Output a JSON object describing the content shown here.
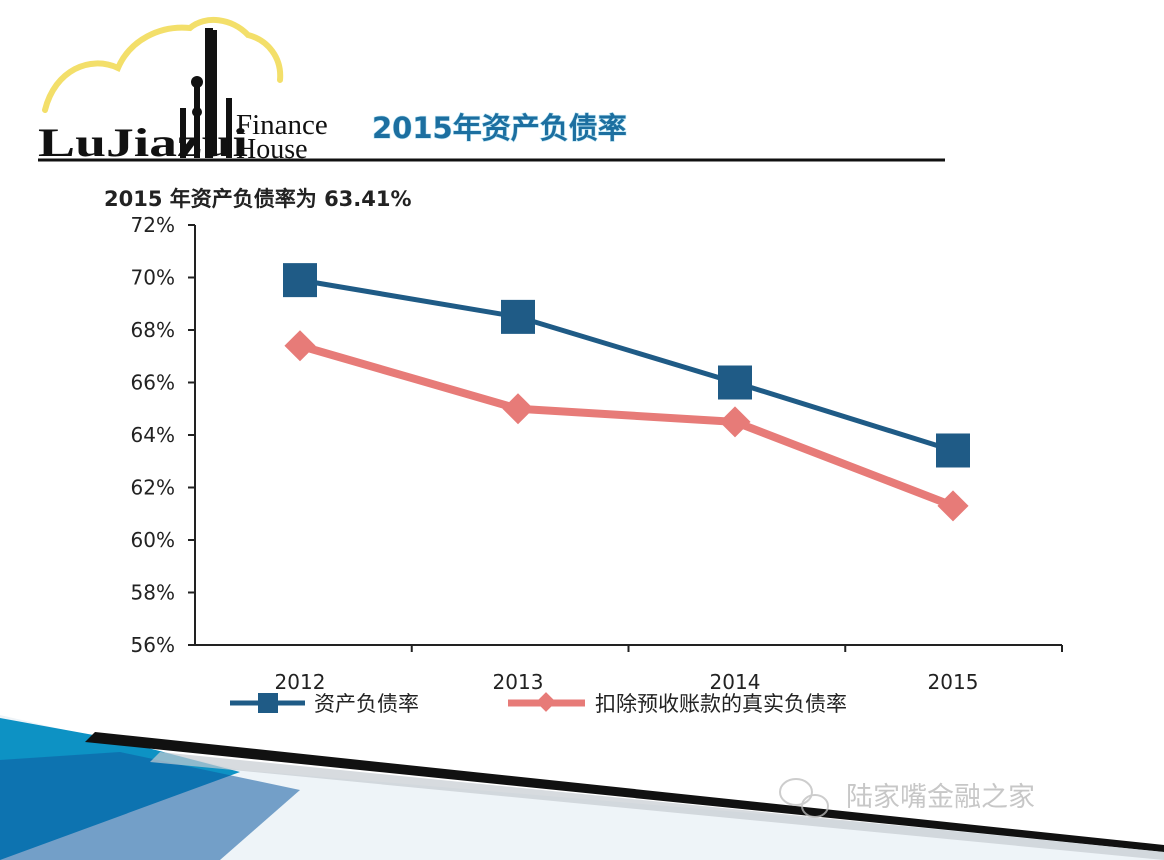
{
  "header": {
    "logo_word": "LuJiazui",
    "logo_finance": "Finance",
    "logo_house": "House",
    "slide_title": "2015年资产负债率"
  },
  "chart_data": {
    "type": "line",
    "subtitle": "2015 年资产负债率为 63.41%",
    "categories": [
      "2012",
      "2013",
      "2014",
      "2015"
    ],
    "series": [
      {
        "name": "资产负债率",
        "values": [
          69.9,
          68.5,
          66.0,
          63.41
        ],
        "color": "#1f5b86",
        "marker": "square"
      },
      {
        "name": "扣除预收账款的真实负债率",
        "values": [
          67.4,
          65.0,
          64.5,
          61.3
        ],
        "color": "#e77b78",
        "marker": "diamond"
      }
    ],
    "ylim": [
      56,
      72
    ],
    "yticks": [
      "56%",
      "58%",
      "60%",
      "62%",
      "64%",
      "66%",
      "68%",
      "70%",
      "72%"
    ],
    "grid": false,
    "legend_position": "bottom"
  },
  "watermark": {
    "text": "陆家嘴金融之家",
    "icon": "wechat-icon"
  },
  "colors": {
    "title_fill": "#1c6fa0",
    "title_outline": "#bfe6f4",
    "accent_teal": "#2aa3c8",
    "axis": "#222222"
  }
}
